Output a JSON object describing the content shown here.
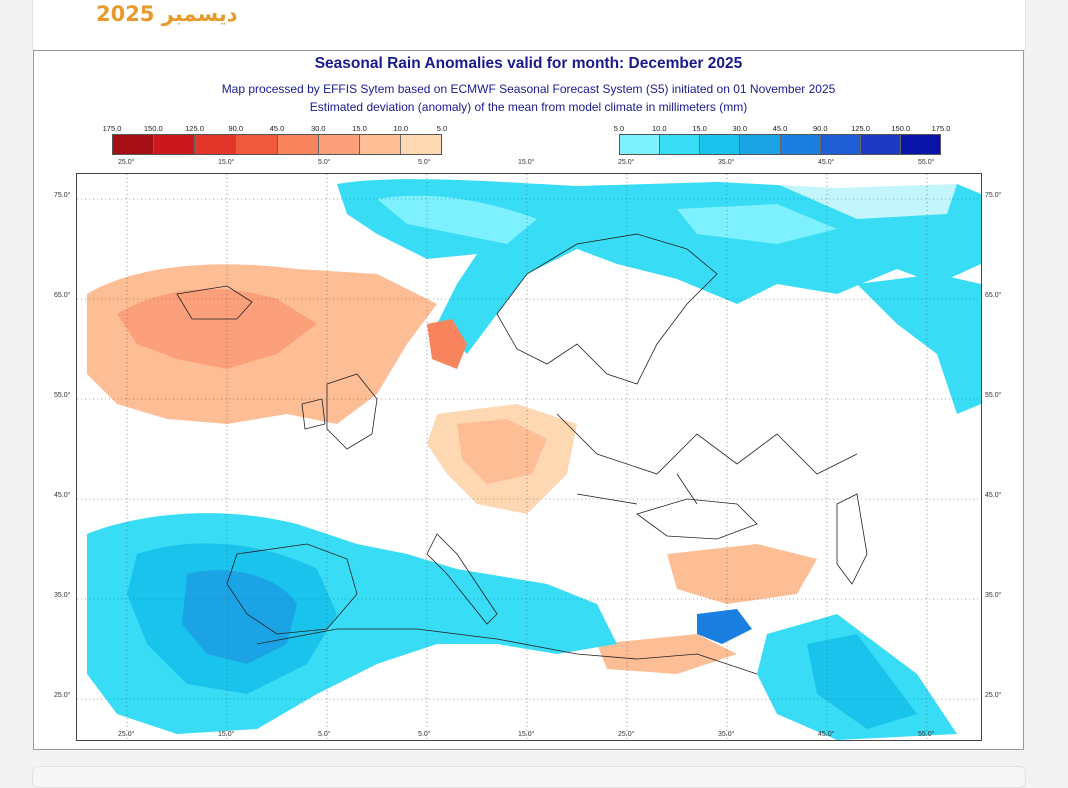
{
  "page": {
    "heading": "ديسمبر 2025"
  },
  "map": {
    "title": "Seasonal Rain Anomalies valid for month: December 2025",
    "subtitle_line1": "Map processed by EFFIS Sytem based on ECMWF Seasonal Forecast System (S5) initiated on 01 November 2025",
    "subtitle_line2": "Estimated deviation (anomaly) of the mean from model climate in millimeters (mm)",
    "legend_dry": {
      "labels": [
        "175.0",
        "150.0",
        "125.0",
        "90.0",
        "45.0",
        "30.0",
        "15.0",
        "10.0",
        "5.0"
      ],
      "colors": [
        "#a50f15",
        "#cb181d",
        "#e2362a",
        "#ef5a3c",
        "#f7845c",
        "#fba07a",
        "#fdbd95",
        "#fed7b3"
      ]
    },
    "legend_wet": {
      "labels": [
        "5.0",
        "10.0",
        "15.0",
        "30.0",
        "45.0",
        "90.0",
        "125.0",
        "150.0",
        "175.0"
      ],
      "colors": [
        "#7df1ff",
        "#38dcf4",
        "#19c3ec",
        "#1aa4e6",
        "#1a7fe0",
        "#1f5fd6",
        "#1d3bc2",
        "#0a14a8"
      ]
    },
    "lon_labels": [
      "25.0°",
      "15.0°",
      "5.0°",
      "5.0°",
      "15.0°",
      "25.0°",
      "35.0°",
      "45.0°",
      "55.0°"
    ],
    "lat_labels": [
      "75.0°",
      "65.0°",
      "55.0°",
      "45.0°",
      "35.0°",
      "25.0°"
    ],
    "colors": {
      "title_text": "#1a1a8c",
      "heading_text": "#e69a2c",
      "land_outline": "#222222"
    }
  }
}
